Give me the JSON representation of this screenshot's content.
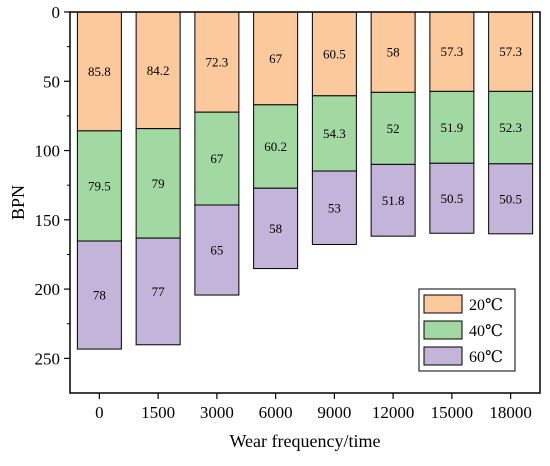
{
  "chart_data": {
    "type": "bar",
    "stacked": true,
    "y_inverted": true,
    "xlabel": "Wear frequency/time",
    "ylabel": "BPN",
    "ylim": [
      0,
      275
    ],
    "yticks": [
      0,
      50,
      100,
      150,
      200,
      250
    ],
    "categories": [
      "0",
      "1500",
      "3000",
      "6000",
      "9000",
      "12000",
      "15000",
      "18000"
    ],
    "series": [
      {
        "name": "20℃",
        "color": "#fbc99b",
        "values": [
          85.8,
          84.2,
          72.3,
          67,
          60.5,
          58,
          57.3,
          57.3
        ]
      },
      {
        "name": "40℃",
        "color": "#a2d9a2",
        "values": [
          79.5,
          79,
          67,
          60.2,
          54.3,
          52,
          51.9,
          52.3
        ]
      },
      {
        "name": "60℃",
        "color": "#c3b5d9",
        "values": [
          78,
          77,
          65,
          58,
          53,
          51.8,
          50.5,
          50.5
        ]
      }
    ],
    "legend_position": "bottom-right",
    "grid": false
  }
}
